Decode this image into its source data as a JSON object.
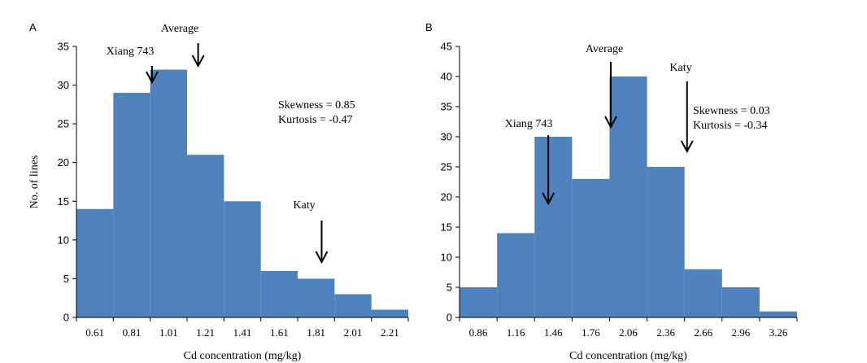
{
  "colors": {
    "bar": "#4f81bd",
    "axis": "#000000",
    "text": "#000000",
    "background": "#ffffff"
  },
  "chart_data": [
    {
      "type": "bar",
      "panel_label": "A",
      "title": "",
      "xlabel": "Cd concentration (mg/kg)",
      "ylabel": "No. of lines",
      "ylim": [
        0,
        35
      ],
      "yticks": [
        0,
        5,
        10,
        15,
        20,
        25,
        30,
        35
      ],
      "grid": false,
      "categories": [
        "0.61",
        "0.81",
        "1.01",
        "1.21",
        "1.41",
        "1.61",
        "1.81",
        "2.01",
        "2.21"
      ],
      "values": [
        14,
        29,
        32,
        21,
        15,
        6,
        5,
        3,
        1
      ],
      "annotations": [
        {
          "text": "Xiang 743",
          "x": 0.92
        },
        {
          "text": "Average",
          "x": 1.17
        },
        {
          "text": "Katy",
          "x": 1.84
        }
      ],
      "stats": [
        "Skewness = 0.85",
        "Kurtosis = -0.47"
      ]
    },
    {
      "type": "bar",
      "panel_label": "B",
      "title": "",
      "xlabel": "Cd concentration (mg/kg)",
      "ylabel": "",
      "ylim": [
        0,
        45
      ],
      "yticks": [
        0,
        5,
        10,
        15,
        20,
        25,
        30,
        35,
        40,
        45
      ],
      "grid": false,
      "categories": [
        "0.86",
        "1.16",
        "1.46",
        "1.76",
        "2.06",
        "2.36",
        "2.66",
        "2.96",
        "3.26"
      ],
      "values": [
        5,
        14,
        30,
        23,
        40,
        25,
        8,
        5,
        1
      ],
      "annotations": [
        {
          "text": "Xiang 743",
          "x": 1.42
        },
        {
          "text": "Average",
          "x": 1.92
        },
        {
          "text": "Katy",
          "x": 2.53
        }
      ],
      "stats": [
        "Skewness = 0.03",
        "Kurtosis = -0.34"
      ]
    }
  ]
}
